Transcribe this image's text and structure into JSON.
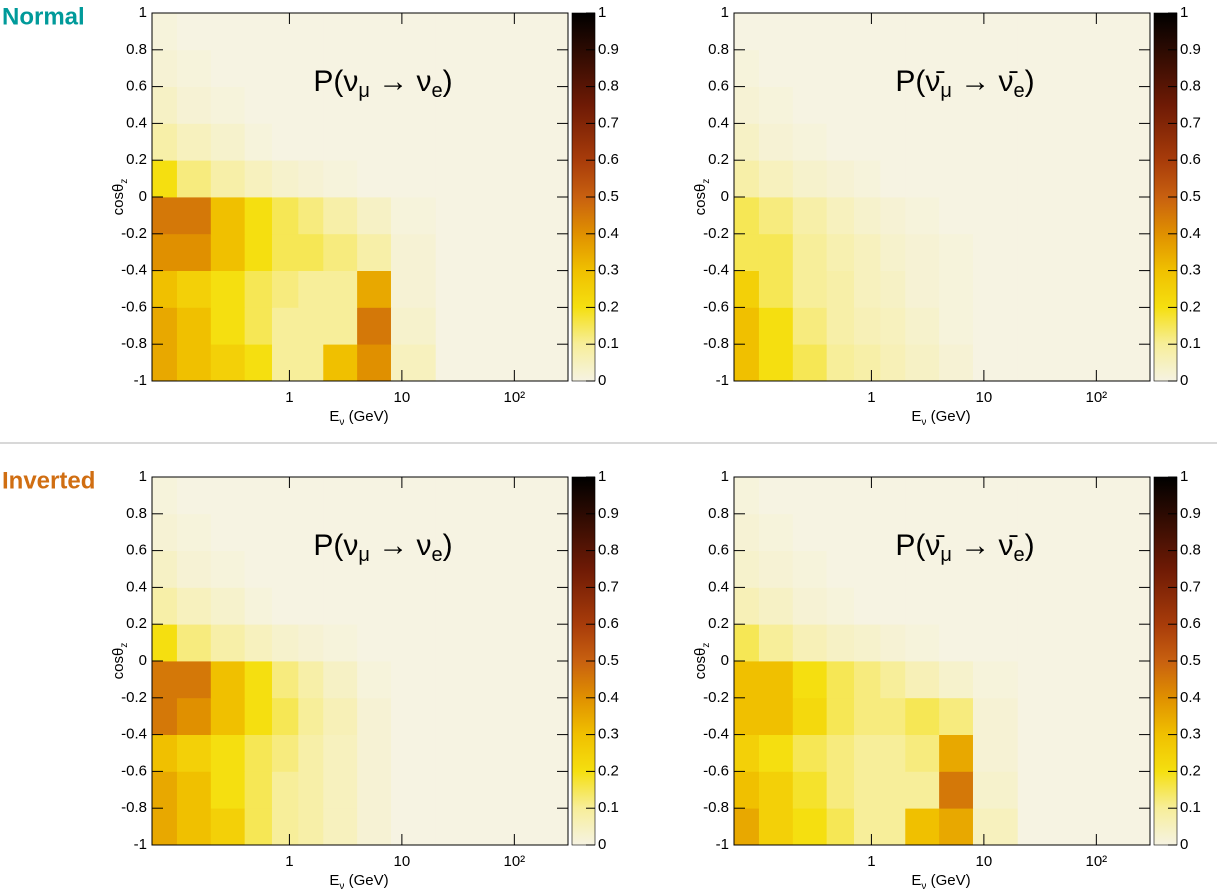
{
  "group_labels": [
    "Normal",
    "Inverted"
  ],
  "chart_data": [
    {
      "type": "heatmap",
      "title": [
        "P(ν",
        "μ",
        " → ν",
        "e",
        ")"
      ],
      "xlabel": [
        "E",
        "ν",
        " (GeV)"
      ],
      "ylabel": [
        "cosθ",
        "z"
      ],
      "xscale": "log",
      "xlim": [
        0.06,
        300
      ],
      "xticks": [
        1,
        10,
        {
          "value": 100,
          "label": "10²"
        }
      ],
      "ylim": [
        -1,
        1
      ],
      "yticks": [
        -1,
        -0.8,
        -0.6,
        -0.4,
        -0.2,
        0,
        0.2,
        0.4,
        0.6,
        0.8,
        1
      ],
      "zlim": [
        0,
        1
      ],
      "zticks": [
        0,
        0.1,
        0.2,
        0.3,
        0.4,
        0.5,
        0.6,
        0.7,
        0.8,
        0.9,
        1
      ],
      "colorscale": [
        [
          0,
          "#f6f3e2"
        ],
        [
          0.1,
          "#f7ee9a"
        ],
        [
          0.2,
          "#f5df10"
        ],
        [
          0.3,
          "#f0c000"
        ],
        [
          0.4,
          "#e09000"
        ],
        [
          0.5,
          "#c86010"
        ],
        [
          0.6,
          "#a83c0a"
        ],
        [
          0.75,
          "#6e1a05"
        ],
        [
          1,
          "#000000"
        ]
      ],
      "xbins": [
        0.06,
        0.1,
        0.2,
        0.4,
        0.7,
        1.2,
        2,
        4,
        8,
        20,
        300
      ],
      "ybins": [
        -1,
        -0.8,
        -0.6,
        -0.4,
        -0.2,
        0,
        0.2,
        0.4,
        0.6,
        0.8,
        1
      ],
      "z": [
        [
          0.35,
          0.3,
          0.25,
          0.2,
          0.1,
          0.1,
          0.3,
          0.4,
          0.05,
          0
        ],
        [
          0.35,
          0.3,
          0.2,
          0.15,
          0.1,
          0.1,
          0.1,
          0.45,
          0.03,
          0
        ],
        [
          0.3,
          0.25,
          0.2,
          0.15,
          0.12,
          0.1,
          0.1,
          0.35,
          0.02,
          0
        ],
        [
          0.4,
          0.4,
          0.3,
          0.2,
          0.15,
          0.15,
          0.12,
          0.08,
          0.02,
          0
        ],
        [
          0.45,
          0.45,
          0.3,
          0.2,
          0.15,
          0.12,
          0.08,
          0.04,
          0.01,
          0
        ],
        [
          0.2,
          0.12,
          0.08,
          0.05,
          0.03,
          0.02,
          0.01,
          0,
          0,
          0
        ],
        [
          0.08,
          0.05,
          0.03,
          0.01,
          0,
          0,
          0,
          0,
          0,
          0
        ],
        [
          0.04,
          0.02,
          0.01,
          0,
          0,
          0,
          0,
          0,
          0,
          0
        ],
        [
          0.02,
          0.01,
          0,
          0,
          0,
          0,
          0,
          0,
          0,
          0
        ],
        [
          0.01,
          0,
          0,
          0,
          0,
          0,
          0,
          0,
          0,
          0
        ]
      ]
    },
    {
      "type": "heatmap",
      "title": [
        "P(ν̄",
        "μ",
        " → ν̄",
        "e",
        ")"
      ],
      "xlabel": [
        "E",
        "ν",
        " (GeV)"
      ],
      "ylabel": [
        "cosθ",
        "z"
      ],
      "xscale": "log",
      "xlim": [
        0.06,
        300
      ],
      "xticks": [
        1,
        10,
        {
          "value": 100,
          "label": "10²"
        }
      ],
      "ylim": [
        -1,
        1
      ],
      "yticks": [
        -1,
        -0.8,
        -0.6,
        -0.4,
        -0.2,
        0,
        0.2,
        0.4,
        0.6,
        0.8,
        1
      ],
      "zlim": [
        0,
        1
      ],
      "zticks": [
        0,
        0.1,
        0.2,
        0.3,
        0.4,
        0.5,
        0.6,
        0.7,
        0.8,
        0.9,
        1
      ],
      "colorscale": [
        [
          0,
          "#f6f3e2"
        ],
        [
          0.1,
          "#f7ee9a"
        ],
        [
          0.2,
          "#f5df10"
        ],
        [
          0.3,
          "#f0c000"
        ],
        [
          0.4,
          "#e09000"
        ],
        [
          0.5,
          "#c86010"
        ],
        [
          0.6,
          "#a83c0a"
        ],
        [
          0.75,
          "#6e1a05"
        ],
        [
          1,
          "#000000"
        ]
      ],
      "xbins": [
        0.06,
        0.1,
        0.2,
        0.4,
        0.7,
        1.2,
        2,
        4,
        8,
        20,
        300
      ],
      "ybins": [
        -1,
        -0.8,
        -0.6,
        -0.4,
        -0.2,
        0,
        0.2,
        0.4,
        0.6,
        0.8,
        1
      ],
      "z": [
        [
          0.3,
          0.2,
          0.15,
          0.1,
          0.08,
          0.06,
          0.04,
          0.02,
          0,
          0
        ],
        [
          0.3,
          0.2,
          0.12,
          0.08,
          0.06,
          0.05,
          0.03,
          0.01,
          0,
          0
        ],
        [
          0.25,
          0.15,
          0.1,
          0.08,
          0.05,
          0.04,
          0.02,
          0.01,
          0,
          0
        ],
        [
          0.15,
          0.15,
          0.1,
          0.07,
          0.05,
          0.03,
          0.02,
          0.01,
          0,
          0
        ],
        [
          0.15,
          0.12,
          0.08,
          0.05,
          0.03,
          0.02,
          0.01,
          0,
          0,
          0
        ],
        [
          0.08,
          0.05,
          0.03,
          0.02,
          0.01,
          0,
          0,
          0,
          0,
          0
        ],
        [
          0.04,
          0.02,
          0.01,
          0,
          0,
          0,
          0,
          0,
          0,
          0
        ],
        [
          0.02,
          0.01,
          0,
          0,
          0,
          0,
          0,
          0,
          0,
          0
        ],
        [
          0.01,
          0,
          0,
          0,
          0,
          0,
          0,
          0,
          0,
          0
        ],
        [
          0,
          0,
          0,
          0,
          0,
          0,
          0,
          0,
          0,
          0
        ]
      ]
    },
    {
      "type": "heatmap",
      "title": [
        "P(ν",
        "μ",
        " → ν",
        "e",
        ")"
      ],
      "xlabel": [
        "E",
        "ν",
        " (GeV)"
      ],
      "ylabel": [
        "cosθ",
        "z"
      ],
      "xscale": "log",
      "xlim": [
        0.06,
        300
      ],
      "xticks": [
        1,
        10,
        {
          "value": 100,
          "label": "10²"
        }
      ],
      "ylim": [
        -1,
        1
      ],
      "yticks": [
        -1,
        -0.8,
        -0.6,
        -0.4,
        -0.2,
        0,
        0.2,
        0.4,
        0.6,
        0.8,
        1
      ],
      "zlim": [
        0,
        1
      ],
      "zticks": [
        0,
        0.1,
        0.2,
        0.3,
        0.4,
        0.5,
        0.6,
        0.7,
        0.8,
        0.9,
        1
      ],
      "colorscale": [
        [
          0,
          "#f6f3e2"
        ],
        [
          0.1,
          "#f7ee9a"
        ],
        [
          0.2,
          "#f5df10"
        ],
        [
          0.3,
          "#f0c000"
        ],
        [
          0.4,
          "#e09000"
        ],
        [
          0.5,
          "#c86010"
        ],
        [
          0.6,
          "#a83c0a"
        ],
        [
          0.75,
          "#6e1a05"
        ],
        [
          1,
          "#000000"
        ]
      ],
      "xbins": [
        0.06,
        0.1,
        0.2,
        0.4,
        0.7,
        1.2,
        2,
        4,
        8,
        20,
        300
      ],
      "ybins": [
        -1,
        -0.8,
        -0.6,
        -0.4,
        -0.2,
        0,
        0.2,
        0.4,
        0.6,
        0.8,
        1
      ],
      "z": [
        [
          0.35,
          0.3,
          0.25,
          0.15,
          0.1,
          0.08,
          0.05,
          0.02,
          0,
          0
        ],
        [
          0.35,
          0.3,
          0.2,
          0.15,
          0.1,
          0.08,
          0.05,
          0.02,
          0,
          0
        ],
        [
          0.3,
          0.25,
          0.2,
          0.15,
          0.12,
          0.08,
          0.05,
          0.02,
          0,
          0
        ],
        [
          0.45,
          0.4,
          0.3,
          0.2,
          0.15,
          0.1,
          0.06,
          0.02,
          0,
          0
        ],
        [
          0.45,
          0.45,
          0.3,
          0.2,
          0.12,
          0.08,
          0.04,
          0.01,
          0,
          0
        ],
        [
          0.2,
          0.12,
          0.08,
          0.05,
          0.03,
          0.02,
          0.01,
          0,
          0,
          0
        ],
        [
          0.08,
          0.05,
          0.03,
          0.01,
          0,
          0,
          0,
          0,
          0,
          0
        ],
        [
          0.04,
          0.02,
          0.01,
          0,
          0,
          0,
          0,
          0,
          0,
          0
        ],
        [
          0.02,
          0.01,
          0,
          0,
          0,
          0,
          0,
          0,
          0,
          0
        ],
        [
          0.01,
          0,
          0,
          0,
          0,
          0,
          0,
          0,
          0,
          0
        ]
      ]
    },
    {
      "type": "heatmap",
      "title": [
        "P(ν̄",
        "μ",
        " → ν̄",
        "e",
        ")"
      ],
      "xlabel": [
        "E",
        "ν",
        " (GeV)"
      ],
      "ylabel": [
        "cosθ",
        "z"
      ],
      "xscale": "log",
      "xlim": [
        0.06,
        300
      ],
      "xticks": [
        1,
        10,
        {
          "value": 100,
          "label": "10²"
        }
      ],
      "ylim": [
        -1,
        1
      ],
      "yticks": [
        -1,
        -0.8,
        -0.6,
        -0.4,
        -0.2,
        0,
        0.2,
        0.4,
        0.6,
        0.8,
        1
      ],
      "zlim": [
        0,
        1
      ],
      "zticks": [
        0,
        0.1,
        0.2,
        0.3,
        0.4,
        0.5,
        0.6,
        0.7,
        0.8,
        0.9,
        1
      ],
      "colorscale": [
        [
          0,
          "#f6f3e2"
        ],
        [
          0.1,
          "#f7ee9a"
        ],
        [
          0.2,
          "#f5df10"
        ],
        [
          0.3,
          "#f0c000"
        ],
        [
          0.4,
          "#e09000"
        ],
        [
          0.5,
          "#c86010"
        ],
        [
          0.6,
          "#a83c0a"
        ],
        [
          0.75,
          "#6e1a05"
        ],
        [
          1,
          "#000000"
        ]
      ],
      "xbins": [
        0.06,
        0.1,
        0.2,
        0.4,
        0.7,
        1.2,
        2,
        4,
        8,
        20,
        300
      ],
      "ybins": [
        -1,
        -0.8,
        -0.6,
        -0.4,
        -0.2,
        0,
        0.2,
        0.4,
        0.6,
        0.8,
        1
      ],
      "z": [
        [
          0.35,
          0.25,
          0.2,
          0.15,
          0.1,
          0.1,
          0.3,
          0.35,
          0.05,
          0
        ],
        [
          0.3,
          0.25,
          0.18,
          0.12,
          0.1,
          0.1,
          0.1,
          0.45,
          0.03,
          0
        ],
        [
          0.25,
          0.2,
          0.15,
          0.12,
          0.1,
          0.1,
          0.12,
          0.35,
          0.02,
          0
        ],
        [
          0.3,
          0.3,
          0.22,
          0.15,
          0.12,
          0.12,
          0.15,
          0.12,
          0.02,
          0
        ],
        [
          0.3,
          0.3,
          0.2,
          0.15,
          0.12,
          0.1,
          0.06,
          0.03,
          0.01,
          0
        ],
        [
          0.15,
          0.1,
          0.06,
          0.04,
          0.03,
          0.02,
          0.01,
          0,
          0,
          0
        ],
        [
          0.06,
          0.04,
          0.02,
          0.01,
          0,
          0,
          0,
          0,
          0,
          0
        ],
        [
          0.03,
          0.02,
          0.01,
          0,
          0,
          0,
          0,
          0,
          0,
          0
        ],
        [
          0.02,
          0.01,
          0,
          0,
          0,
          0,
          0,
          0,
          0,
          0
        ],
        [
          0.01,
          0,
          0,
          0,
          0,
          0,
          0,
          0,
          0,
          0
        ]
      ]
    }
  ]
}
